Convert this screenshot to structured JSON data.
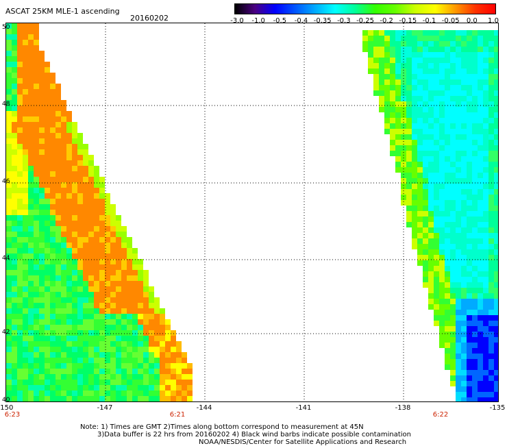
{
  "header": {
    "title": "ASCAT 25KM MLE-1 ascending",
    "date": "20160202"
  },
  "colorbar": {
    "labels": [
      "-3.0",
      "-1.0",
      "-0.5",
      "-0.4",
      "-0.35",
      "-0.3",
      "-0.25",
      "-0.2",
      "-0.15",
      "-0.1",
      "-0.05",
      "0.0",
      "1.0"
    ],
    "colors": [
      "#000000",
      "#4b0082",
      "#0000ff",
      "#0055ff",
      "#00aaff",
      "#00ffff",
      "#00ff99",
      "#33ff00",
      "#66ff00",
      "#ccff00",
      "#ffff00",
      "#ff9900",
      "#ff3300",
      "#ff0000"
    ]
  },
  "map": {
    "lat_labels": [
      "50",
      "48",
      "46",
      "44",
      "42",
      "40"
    ],
    "lon_labels": [
      "-150",
      "-147",
      "-144",
      "-141",
      "-138",
      "-135"
    ],
    "time_labels": [
      "6:23",
      "6:21",
      "6:22"
    ]
  },
  "notes": {
    "line1": "Note: 1) Times are GMT 2)Times along bottom correspond to measurement at 45N",
    "line2": "3)Data buffer is 22 hrs from 20160202 4) Black wind barbs indicate possible contamination",
    "line3": "NOAA/NESDIS/Center for Satellite Applications and Research"
  }
}
